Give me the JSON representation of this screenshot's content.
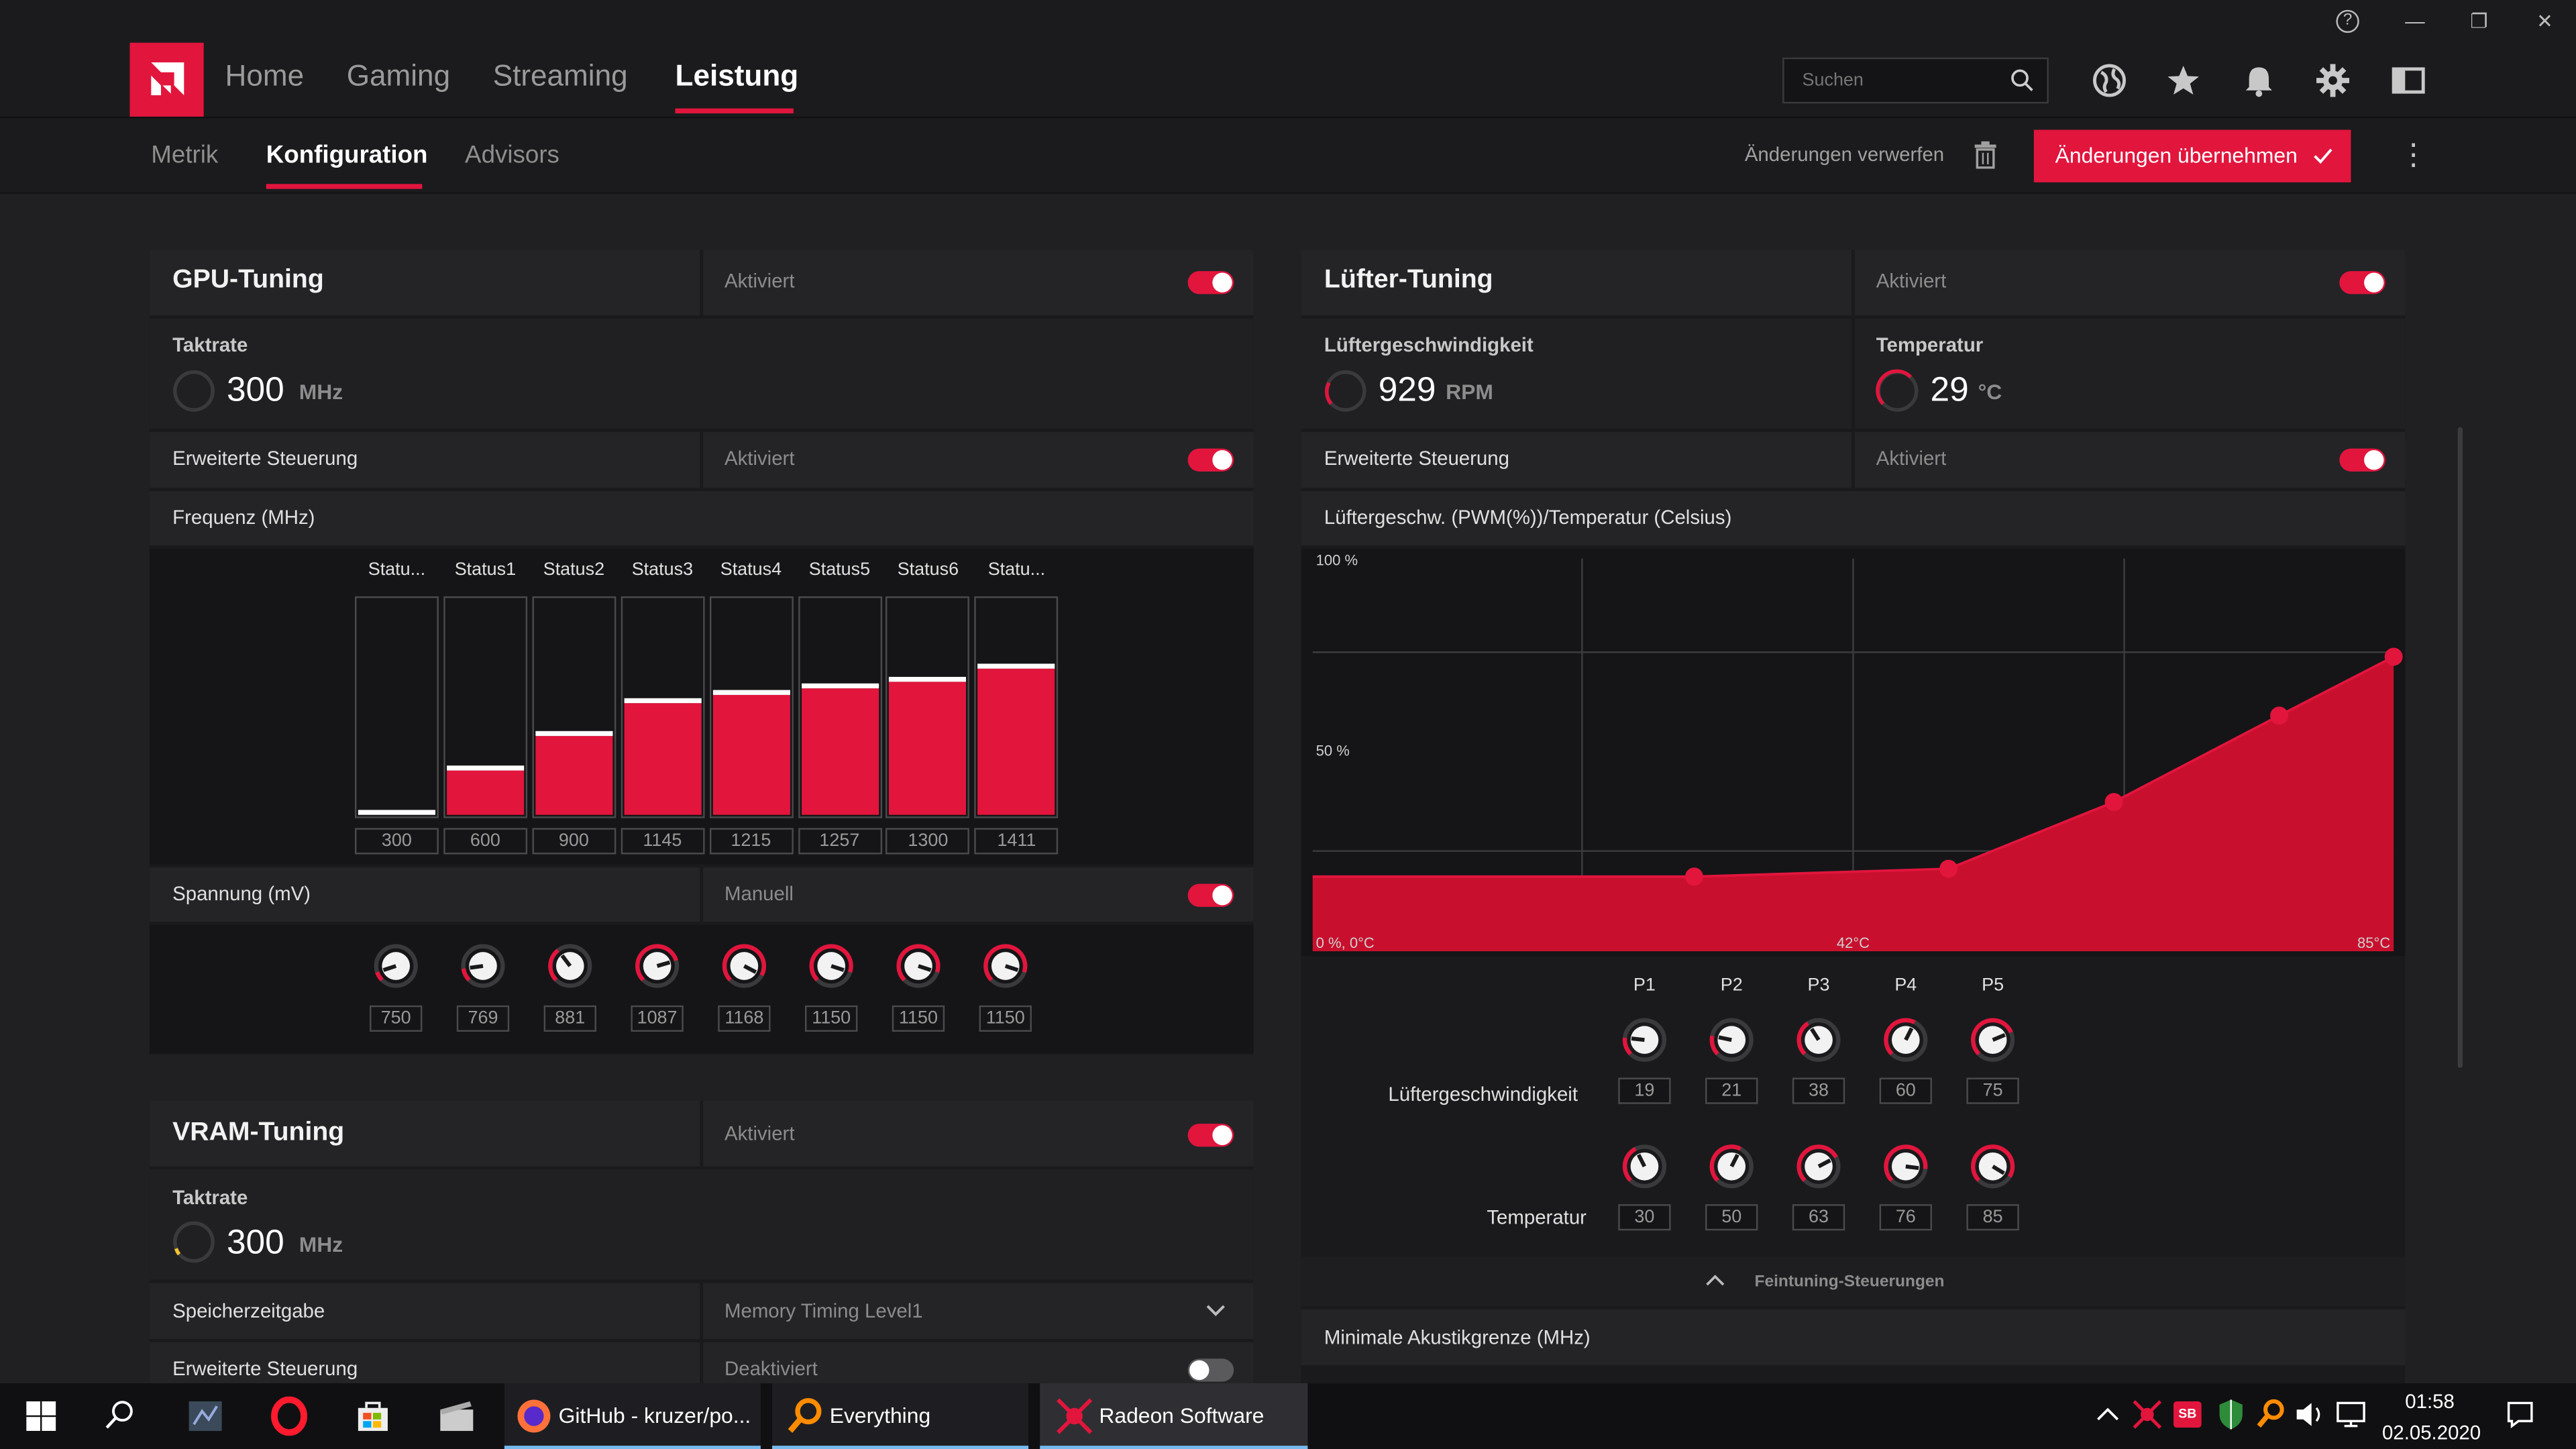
{
  "window": {
    "help_glyph": "?",
    "min_glyph": "—",
    "max_glyph": "❐",
    "close_glyph": "✕"
  },
  "nav": {
    "tabs": [
      "Home",
      "Gaming",
      "Streaming",
      "Leistung"
    ],
    "active_tab": "Leistung",
    "search_placeholder": "Suchen",
    "icons": [
      "globe-icon",
      "star-icon",
      "bell-icon",
      "gear-icon",
      "layout-icon"
    ]
  },
  "subnav": {
    "tabs": [
      "Metrik",
      "Konfiguration",
      "Advisors"
    ],
    "active_tab": "Konfiguration",
    "discard_label": "Änderungen verwerfen",
    "apply_label": "Änderungen übernehmen",
    "more_glyph": "⋮"
  },
  "gpu": {
    "title": "GPU-Tuning",
    "status": "Aktiviert",
    "clock_label": "Taktrate",
    "clock_value": "300",
    "clock_unit": "MHz",
    "advanced_label": "Erweiterte Steuerung",
    "advanced_status": "Aktiviert",
    "freq_label": "Frequenz (MHz)",
    "states": [
      "Statu...",
      "Status1",
      "Status2",
      "Status3",
      "Status4",
      "Status5",
      "Status6",
      "Statu..."
    ],
    "freq_values": [
      300,
      600,
      900,
      1145,
      1215,
      1257,
      1300,
      1411
    ],
    "freq_fill": [
      0.0,
      0.2,
      0.36,
      0.51,
      0.55,
      0.58,
      0.61,
      0.67
    ],
    "volt_label": "Spannung (mV)",
    "volt_mode": "Manuell",
    "volt_values": [
      750,
      769,
      881,
      1087,
      1168,
      1150,
      1150,
      1150
    ]
  },
  "vram": {
    "title": "VRAM-Tuning",
    "status": "Aktiviert",
    "clock_label": "Taktrate",
    "clock_value": "300",
    "clock_unit": "MHz",
    "timing_label": "Speicherzeitgabe",
    "timing_value": "Memory Timing Level1",
    "advanced_label": "Erweiterte Steuerung",
    "advanced_status": "Deaktiviert"
  },
  "fan": {
    "title": "Lüfter-Tuning",
    "status": "Aktiviert",
    "speed_label": "Lüftergeschwindigkeit",
    "speed_value": "929",
    "speed_unit": "RPM",
    "temp_label": "Temperatur",
    "temp_value": "29",
    "temp_unit": "°C",
    "advanced_label": "Erweiterte Steuerung",
    "advanced_status": "Aktiviert",
    "curve_label": "Lüftergeschw. (PWM(%))/Temperatur (Celsius)",
    "points": [
      "P1",
      "P2",
      "P3",
      "P4",
      "P5"
    ],
    "speed_row_label": "Lüftergeschwindigkeit",
    "temp_row_label": "Temperatur",
    "fine_label": "Feintuning-Steuerungen",
    "acoustic_label": "Minimale Akustikgrenze (MHz)"
  },
  "chart_data": {
    "type": "area",
    "title": "Lüftergeschw. (PWM(%))/Temperatur (Celsius)",
    "x": [
      30,
      50,
      63,
      76,
      85
    ],
    "y": [
      19,
      21,
      38,
      60,
      75
    ],
    "xlim": [
      0,
      85
    ],
    "ylim": [
      0,
      100
    ],
    "xlabel": "",
    "ylabel": "",
    "tick_labels": {
      "y_top": "100 %",
      "y_mid": "50 %",
      "origin": "0 %, 0°C",
      "x_mid": "42°C",
      "x_max": "85°C"
    },
    "grid": true,
    "colors": {
      "fill": "#c8102e",
      "line": "#e2153d",
      "bg": "#151517"
    }
  },
  "taskbar": {
    "items": [
      "GitHub - kruzer/po...",
      "Everything",
      "Radeon Software"
    ],
    "time": "01:58",
    "date": "02.05.2020",
    "sb_badge": "SB"
  },
  "colors": {
    "accent": "#e2153d",
    "bg": "#202022",
    "panel": "#1a1a1c"
  }
}
